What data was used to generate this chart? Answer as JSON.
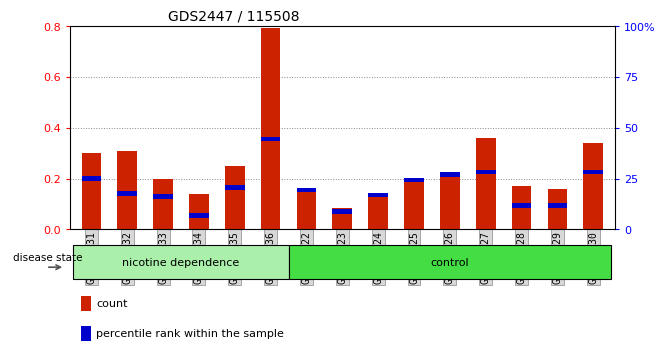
{
  "title": "GDS2447 / 115508",
  "samples": [
    "GSM144131",
    "GSM144132",
    "GSM144133",
    "GSM144134",
    "GSM144135",
    "GSM144136",
    "GSM144122",
    "GSM144123",
    "GSM144124",
    "GSM144125",
    "GSM144126",
    "GSM144127",
    "GSM144128",
    "GSM144129",
    "GSM144130"
  ],
  "count_values": [
    0.3,
    0.31,
    0.2,
    0.14,
    0.25,
    0.79,
    0.16,
    0.085,
    0.13,
    0.19,
    0.21,
    0.36,
    0.17,
    0.16,
    0.34
  ],
  "percentile_values": [
    0.2,
    0.14,
    0.13,
    0.055,
    0.165,
    0.355,
    0.155,
    0.07,
    0.135,
    0.195,
    0.215,
    0.225,
    0.095,
    0.095,
    0.225
  ],
  "groups": [
    {
      "label": "nicotine dependence",
      "start": 0,
      "end": 6,
      "color": "#90ee90"
    },
    {
      "label": "control",
      "start": 6,
      "end": 15,
      "color": "#3ccc3c"
    }
  ],
  "bar_color": "#cc2200",
  "percentile_color": "#0000cc",
  "ylim_left": [
    0,
    0.8
  ],
  "ylim_right": [
    0,
    100
  ],
  "yticks_left": [
    0,
    0.2,
    0.4,
    0.6,
    0.8
  ],
  "yticks_right": [
    0,
    25,
    50,
    75,
    100
  ],
  "disease_state_label": "disease state",
  "legend_count_label": "count",
  "legend_percentile_label": "percentile rank within the sample",
  "bar_width": 0.55,
  "title_fontsize": 10,
  "tick_label_fontsize": 7,
  "axis_label_fontsize": 8,
  "nicotine_color": "#aaf0aa",
  "control_color": "#44dd44"
}
